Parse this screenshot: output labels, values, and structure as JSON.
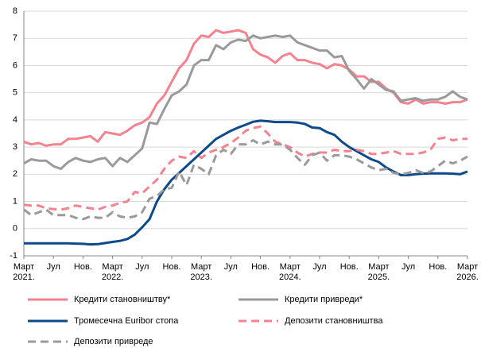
{
  "chart_data": {
    "type": "line",
    "categories": [
      "Март 2021.",
      null,
      null,
      null,
      "Јул",
      null,
      null,
      null,
      "Нов.",
      null,
      null,
      null,
      "Март 2022.",
      null,
      null,
      null,
      "Јул",
      null,
      null,
      null,
      "Нов.",
      null,
      null,
      null,
      "Март 2023.",
      null,
      null,
      null,
      "Јул",
      null,
      null,
      null,
      "Нов.",
      null,
      null,
      null,
      "Март 2024.",
      null,
      null,
      null,
      "Јул",
      null,
      null,
      null,
      "Нов.",
      null,
      null,
      null,
      "Март 2025.",
      null,
      null,
      null,
      "Јул",
      null,
      null,
      null,
      "Нов.",
      null,
      null,
      null,
      "Март 2026."
    ],
    "series": [
      {
        "name": "Кредити становништву*",
        "color": "#f4838f",
        "dash": false,
        "values": [
          3.2,
          3.1,
          3.15,
          3.05,
          3.1,
          3.1,
          3.3,
          3.3,
          3.35,
          3.4,
          3.2,
          3.55,
          3.5,
          3.45,
          3.6,
          3.8,
          3.9,
          4.1,
          4.6,
          4.9,
          5.4,
          5.9,
          6.2,
          6.8,
          7.1,
          7.05,
          7.3,
          7.2,
          7.25,
          7.3,
          7.2,
          6.6,
          6.4,
          6.3,
          6.1,
          6.35,
          6.45,
          6.2,
          6.2,
          6.1,
          6.05,
          5.9,
          6.05,
          6.0,
          5.85,
          5.6,
          5.6,
          5.4,
          5.4,
          5.15,
          5.0,
          4.65,
          4.6,
          4.75,
          4.6,
          4.65,
          4.65,
          4.6,
          4.65,
          4.65,
          4.75
        ]
      },
      {
        "name": "Кредити привреди*",
        "color": "#9a9a9a",
        "dash": false,
        "values": [
          2.4,
          2.55,
          2.5,
          2.5,
          2.3,
          2.2,
          2.45,
          2.6,
          2.5,
          2.45,
          2.55,
          2.6,
          2.3,
          2.6,
          2.45,
          2.7,
          2.95,
          3.9,
          3.85,
          4.4,
          4.9,
          5.05,
          5.3,
          6.0,
          6.2,
          6.2,
          6.75,
          6.6,
          6.85,
          6.95,
          6.9,
          7.1,
          7.0,
          7.05,
          7.1,
          7.05,
          7.1,
          6.85,
          6.75,
          6.65,
          6.55,
          6.55,
          6.3,
          6.35,
          5.8,
          5.5,
          5.15,
          5.5,
          5.3,
          5.1,
          5.05,
          4.7,
          4.75,
          4.8,
          4.7,
          4.75,
          4.75,
          4.85,
          5.05,
          4.85,
          4.75
        ]
      },
      {
        "name": "Тромесечна Euribor стопа",
        "color": "#0d4a8a",
        "dash": false,
        "values": [
          -0.54,
          -0.54,
          -0.54,
          -0.54,
          -0.54,
          -0.54,
          -0.54,
          -0.55,
          -0.56,
          -0.58,
          -0.57,
          -0.53,
          -0.49,
          -0.45,
          -0.38,
          -0.22,
          0.05,
          0.35,
          1.0,
          1.45,
          1.8,
          2.05,
          2.3,
          2.55,
          2.8,
          3.05,
          3.3,
          3.45,
          3.6,
          3.72,
          3.82,
          3.93,
          3.97,
          3.95,
          3.92,
          3.92,
          3.92,
          3.9,
          3.85,
          3.72,
          3.7,
          3.55,
          3.45,
          3.2,
          3.0,
          2.85,
          2.7,
          2.55,
          2.45,
          2.25,
          2.1,
          1.97,
          1.97,
          2.0,
          2.02,
          2.03,
          2.03,
          2.03,
          2.02,
          2.0,
          2.1
        ]
      },
      {
        "name": "Депозити становништва",
        "color": "#f4838f",
        "dash": true,
        "values": [
          0.88,
          0.85,
          0.85,
          0.75,
          0.72,
          0.7,
          0.75,
          0.85,
          0.8,
          0.75,
          0.7,
          0.8,
          0.85,
          0.95,
          1.0,
          1.35,
          1.3,
          1.55,
          1.8,
          2.2,
          2.5,
          2.65,
          2.6,
          2.85,
          2.6,
          2.8,
          2.9,
          3.0,
          3.15,
          3.35,
          3.6,
          3.7,
          3.75,
          3.5,
          3.2,
          3.1,
          3.0,
          2.8,
          2.65,
          2.75,
          2.8,
          2.8,
          2.9,
          2.85,
          2.85,
          2.9,
          2.85,
          2.75,
          2.75,
          2.8,
          2.85,
          2.75,
          2.75,
          2.75,
          2.8,
          2.9,
          3.3,
          3.35,
          3.25,
          3.3,
          3.3
        ]
      },
      {
        "name": "Депозити привреде",
        "color": "#9a9a9a",
        "dash": true,
        "values": [
          0.7,
          0.5,
          0.6,
          0.7,
          0.5,
          0.5,
          0.5,
          0.4,
          0.35,
          0.45,
          0.4,
          0.4,
          0.6,
          0.45,
          0.4,
          0.45,
          0.6,
          1.1,
          1.2,
          1.45,
          1.5,
          2.1,
          1.6,
          2.35,
          2.2,
          2.0,
          2.7,
          2.9,
          2.75,
          3.1,
          3.1,
          3.25,
          3.1,
          3.2,
          3.1,
          3.1,
          2.9,
          2.6,
          2.35,
          2.7,
          2.8,
          2.5,
          2.7,
          2.7,
          2.65,
          2.55,
          2.4,
          2.25,
          2.15,
          2.2,
          2.05,
          2.0,
          2.05,
          2.15,
          2.05,
          2.1,
          2.3,
          2.5,
          2.4,
          2.5,
          2.65
        ]
      }
    ],
    "ylim": [
      -1,
      8
    ],
    "yticks": [
      -1,
      0,
      1,
      2,
      3,
      4,
      5,
      6,
      7,
      8
    ],
    "grid": true
  }
}
